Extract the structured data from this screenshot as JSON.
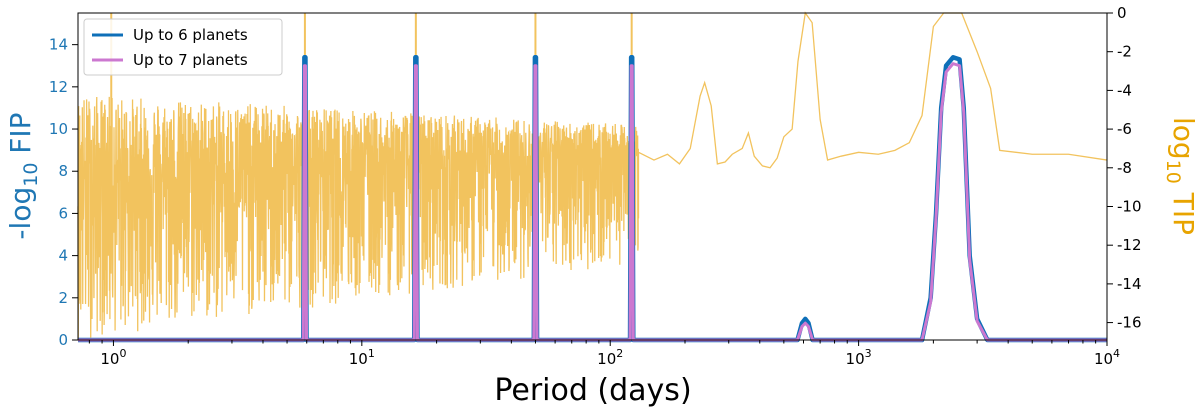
{
  "chart_data": {
    "type": "line",
    "xlabel": "Period (days)",
    "ylabel_left": "-log",
    "ylabel_left_sub": "10",
    "ylabel_left_suffix": " FIP",
    "ylabel_right": "log",
    "ylabel_right_sub": "10",
    "ylabel_right_suffix": " TIP",
    "x_scale": "log",
    "xlim": [
      0.72,
      10000
    ],
    "ylim_left": [
      0,
      15.5
    ],
    "ylim_right": [
      -16.9,
      0
    ],
    "x_ticks": [
      {
        "value": 1,
        "base": "10",
        "exp": "0"
      },
      {
        "value": 10,
        "base": "10",
        "exp": "1"
      },
      {
        "value": 100,
        "base": "10",
        "exp": "2"
      },
      {
        "value": 1000,
        "base": "10",
        "exp": "3"
      },
      {
        "value": 10000,
        "base": "10",
        "exp": "4"
      }
    ],
    "y_ticks_left": [
      "0",
      "2",
      "4",
      "6",
      "8",
      "10",
      "12",
      "14"
    ],
    "y_ticks_right": [
      "0",
      "-2",
      "-4",
      "-6",
      "-8",
      "-10",
      "-12",
      "-14",
      "-16"
    ],
    "grid": false,
    "legend_position": "top-left",
    "colors": {
      "left_axis": "#1f77b4",
      "right_axis": "#e8a400",
      "tip": "#f2c35e",
      "fip6": "#0e6fb8",
      "fip7": "#cc78d0"
    },
    "series": [
      {
        "name": "Up to 6 planets",
        "axis": "left",
        "peaks": [
          {
            "period": 5.9,
            "value": 13.4
          },
          {
            "period": 16.5,
            "value": 13.4
          },
          {
            "period": 50,
            "value": 13.4
          },
          {
            "period": 122,
            "value": 13.4
          },
          {
            "period": 610,
            "value": 1.0
          },
          {
            "period": 2400,
            "value": 13.4
          }
        ],
        "points": [
          [
            0.72,
            0
          ],
          [
            1800,
            0
          ],
          [
            1950,
            2
          ],
          [
            2050,
            6
          ],
          [
            2150,
            11
          ],
          [
            2250,
            13.0
          ],
          [
            2400,
            13.4
          ],
          [
            2550,
            13.3
          ],
          [
            2650,
            11
          ],
          [
            2800,
            4
          ],
          [
            3000,
            1
          ],
          [
            3300,
            0
          ],
          [
            10000,
            0
          ]
        ]
      },
      {
        "name": "Up to 7 planets",
        "axis": "left",
        "peaks": [
          {
            "period": 5.9,
            "value": 13.0
          },
          {
            "period": 16.5,
            "value": 13.0
          },
          {
            "period": 50,
            "value": 13.0
          },
          {
            "period": 122,
            "value": 13.0
          },
          {
            "period": 610,
            "value": 0.8
          },
          {
            "period": 2400,
            "value": 13.1
          }
        ],
        "points": [
          [
            0.72,
            0
          ],
          [
            1800,
            0
          ],
          [
            1950,
            1.8
          ],
          [
            2050,
            5.8
          ],
          [
            2150,
            10.8
          ],
          [
            2250,
            12.7
          ],
          [
            2400,
            13.1
          ],
          [
            2550,
            13.0
          ],
          [
            2650,
            10.8
          ],
          [
            2800,
            3.8
          ],
          [
            3000,
            0.9
          ],
          [
            3300,
            0
          ],
          [
            10000,
            0
          ]
        ]
      },
      {
        "name": "TIP",
        "axis": "right",
        "spikes": [
          0.98,
          5.9,
          16.5,
          50,
          122
        ],
        "points": [
          [
            130,
            -7.2
          ],
          [
            150,
            -7.6
          ],
          [
            170,
            -7.3
          ],
          [
            190,
            -7.8
          ],
          [
            210,
            -7.0
          ],
          [
            230,
            -4.3
          ],
          [
            240,
            -3.6
          ],
          [
            255,
            -4.8
          ],
          [
            270,
            -7.8
          ],
          [
            290,
            -7.7
          ],
          [
            310,
            -7.3
          ],
          [
            340,
            -7.0
          ],
          [
            360,
            -6.2
          ],
          [
            380,
            -7.4
          ],
          [
            410,
            -7.9
          ],
          [
            440,
            -8.0
          ],
          [
            470,
            -7.5
          ],
          [
            500,
            -6.4
          ],
          [
            540,
            -6.0
          ],
          [
            570,
            -2.5
          ],
          [
            610,
            0
          ],
          [
            650,
            -0.5
          ],
          [
            700,
            -5.5
          ],
          [
            750,
            -7.6
          ],
          [
            850,
            -7.4
          ],
          [
            1000,
            -7.2
          ],
          [
            1200,
            -7.3
          ],
          [
            1400,
            -7.1
          ],
          [
            1600,
            -6.7
          ],
          [
            1800,
            -5.3
          ],
          [
            2000,
            -0.7
          ],
          [
            2200,
            0
          ],
          [
            2600,
            0
          ],
          [
            3000,
            -2.0
          ],
          [
            3400,
            -3.9
          ],
          [
            3700,
            -7.1
          ],
          [
            5000,
            -7.3
          ],
          [
            7000,
            -7.3
          ],
          [
            10000,
            -7.6
          ]
        ]
      }
    ]
  }
}
